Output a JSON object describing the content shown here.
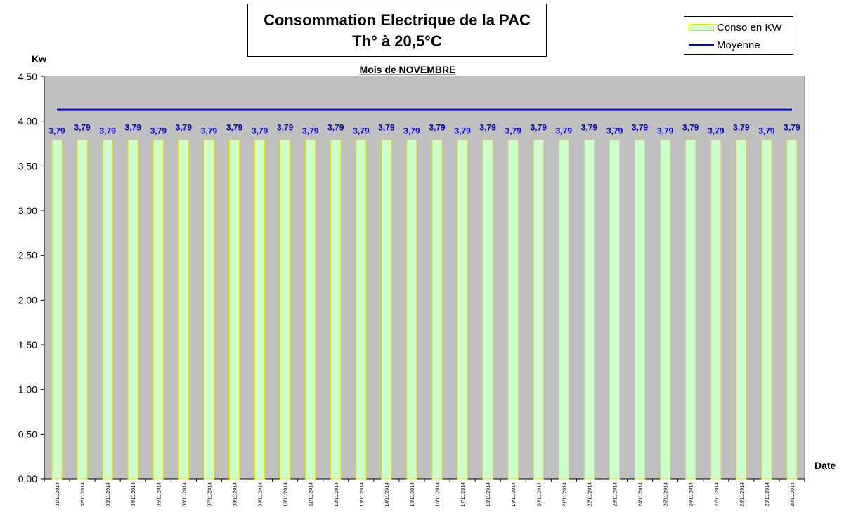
{
  "title": {
    "line1": "Consommation Electrique de la PAC",
    "line2": "Th° à  20,5°C"
  },
  "legend": {
    "bar_label": "Conso en KW",
    "line_label": "Moyenne"
  },
  "chart_data": {
    "type": "bar",
    "subtitle": "Mois  de  NOVEMBRE",
    "ylabel": "Kw",
    "xlabel": "Date",
    "ylim": [
      0,
      4.5
    ],
    "yticks": [
      "0,00",
      "0,50",
      "1,00",
      "1,50",
      "2,00",
      "2,50",
      "3,00",
      "3,50",
      "4,00",
      "4,50"
    ],
    "categories": [
      "01/11/2014",
      "02/11/2014",
      "03/11/2014",
      "04/11/2014",
      "05/11/2014",
      "06/11/2014",
      "07/11/2014",
      "08/11/2014",
      "09/11/2014",
      "10/11/2014",
      "11/11/2014",
      "12/11/2014",
      "13/11/2014",
      "14/11/2014",
      "15/11/2014",
      "16/11/2014",
      "17/11/2014",
      "18/11/2014",
      "19/11/2014",
      "20/11/2014",
      "21/11/2014",
      "22/11/2014",
      "23/11/2014",
      "24/11/2014",
      "25/11/2014",
      "26/11/2014",
      "27/11/2014",
      "28/11/2014",
      "29/11/2014",
      "30/11/2014"
    ],
    "series": [
      {
        "name": "Conso en KW",
        "values": [
          3.79,
          3.79,
          3.79,
          3.79,
          3.79,
          3.79,
          3.79,
          3.79,
          3.79,
          3.79,
          3.79,
          3.79,
          3.79,
          3.79,
          3.79,
          3.79,
          3.79,
          3.79,
          3.79,
          3.79,
          3.79,
          3.79,
          3.79,
          3.79,
          3.79,
          3.79,
          3.79,
          3.79,
          3.79,
          3.79
        ],
        "labels": [
          "3,79",
          "3,79",
          "3,79",
          "3,79",
          "3,79",
          "3,79",
          "3,79",
          "3,79",
          "3,79",
          "3,79",
          "3,79",
          "3,79",
          "3,79",
          "3,79",
          "3,79",
          "3,79",
          "3,79",
          "3,79",
          "3,79",
          "3,79",
          "3,79",
          "3,79",
          "3,79",
          "3,79",
          "3,79",
          "3,79",
          "3,79",
          "3,79",
          "3,79",
          "3,79"
        ]
      },
      {
        "name": "Moyenne",
        "type": "line",
        "values": [
          4.13,
          4.13,
          4.13,
          4.13,
          4.13,
          4.13,
          4.13,
          4.13,
          4.13,
          4.13,
          4.13,
          4.13,
          4.13,
          4.13,
          4.13,
          4.13,
          4.13,
          4.13,
          4.13,
          4.13,
          4.13,
          4.13,
          4.13,
          4.13,
          4.13,
          4.13,
          4.13,
          4.13,
          4.13,
          4.13
        ]
      }
    ],
    "grid": false,
    "legend_position": "top-right",
    "colors": {
      "plot_background": "#c0c0c0",
      "bar_fill": "#ccffcc",
      "bar_edge": "#e8e800",
      "line": "#0000cc",
      "data_label": "#0000cc"
    }
  }
}
